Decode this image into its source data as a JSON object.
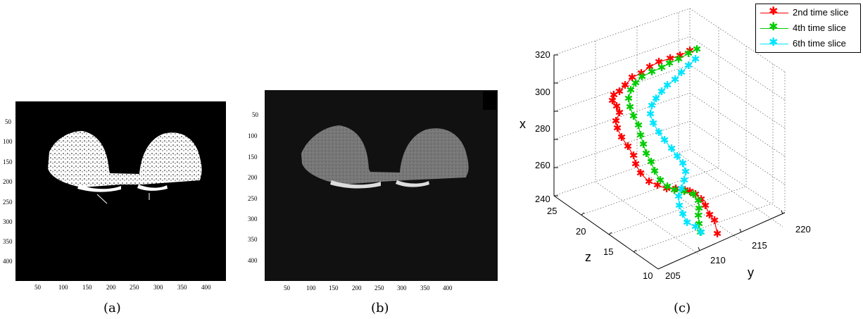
{
  "panels": {
    "a": {
      "caption": "(a)",
      "y_ticks": [
        "50",
        "100",
        "150",
        "200",
        "250",
        "300",
        "350",
        "400"
      ],
      "x_ticks": [
        "50",
        "100",
        "150",
        "200",
        "250",
        "300",
        "350",
        "400"
      ]
    },
    "b": {
      "caption": "(b)",
      "y_ticks": [
        "50",
        "100",
        "150",
        "200",
        "250",
        "300",
        "350",
        "400"
      ],
      "x_ticks": [
        "50",
        "100",
        "150",
        "200",
        "250",
        "300",
        "350",
        "400"
      ]
    },
    "c": {
      "caption": "(c)"
    }
  },
  "chart_data": {
    "type": "line",
    "xlabel": "y",
    "ylabel": "z",
    "zlabel": "x",
    "x_ticks": [
      "205",
      "210",
      "215",
      "220"
    ],
    "y_ticks": [
      "10",
      "15",
      "20",
      "25"
    ],
    "z_ticks": [
      "240",
      "260",
      "280",
      "300",
      "320"
    ],
    "xlim": [
      205,
      222
    ],
    "ylim": [
      10,
      25
    ],
    "zlim": [
      240,
      325
    ],
    "grid": true,
    "legend_position": "top-right",
    "series": [
      {
        "name": "2nd time slice",
        "color": "#ff0000",
        "marker": "*"
      },
      {
        "name": "4th time slice",
        "color": "#00cc00",
        "marker": "*"
      },
      {
        "name": "6th time slice",
        "color": "#00e5ff",
        "marker": "*"
      }
    ]
  }
}
